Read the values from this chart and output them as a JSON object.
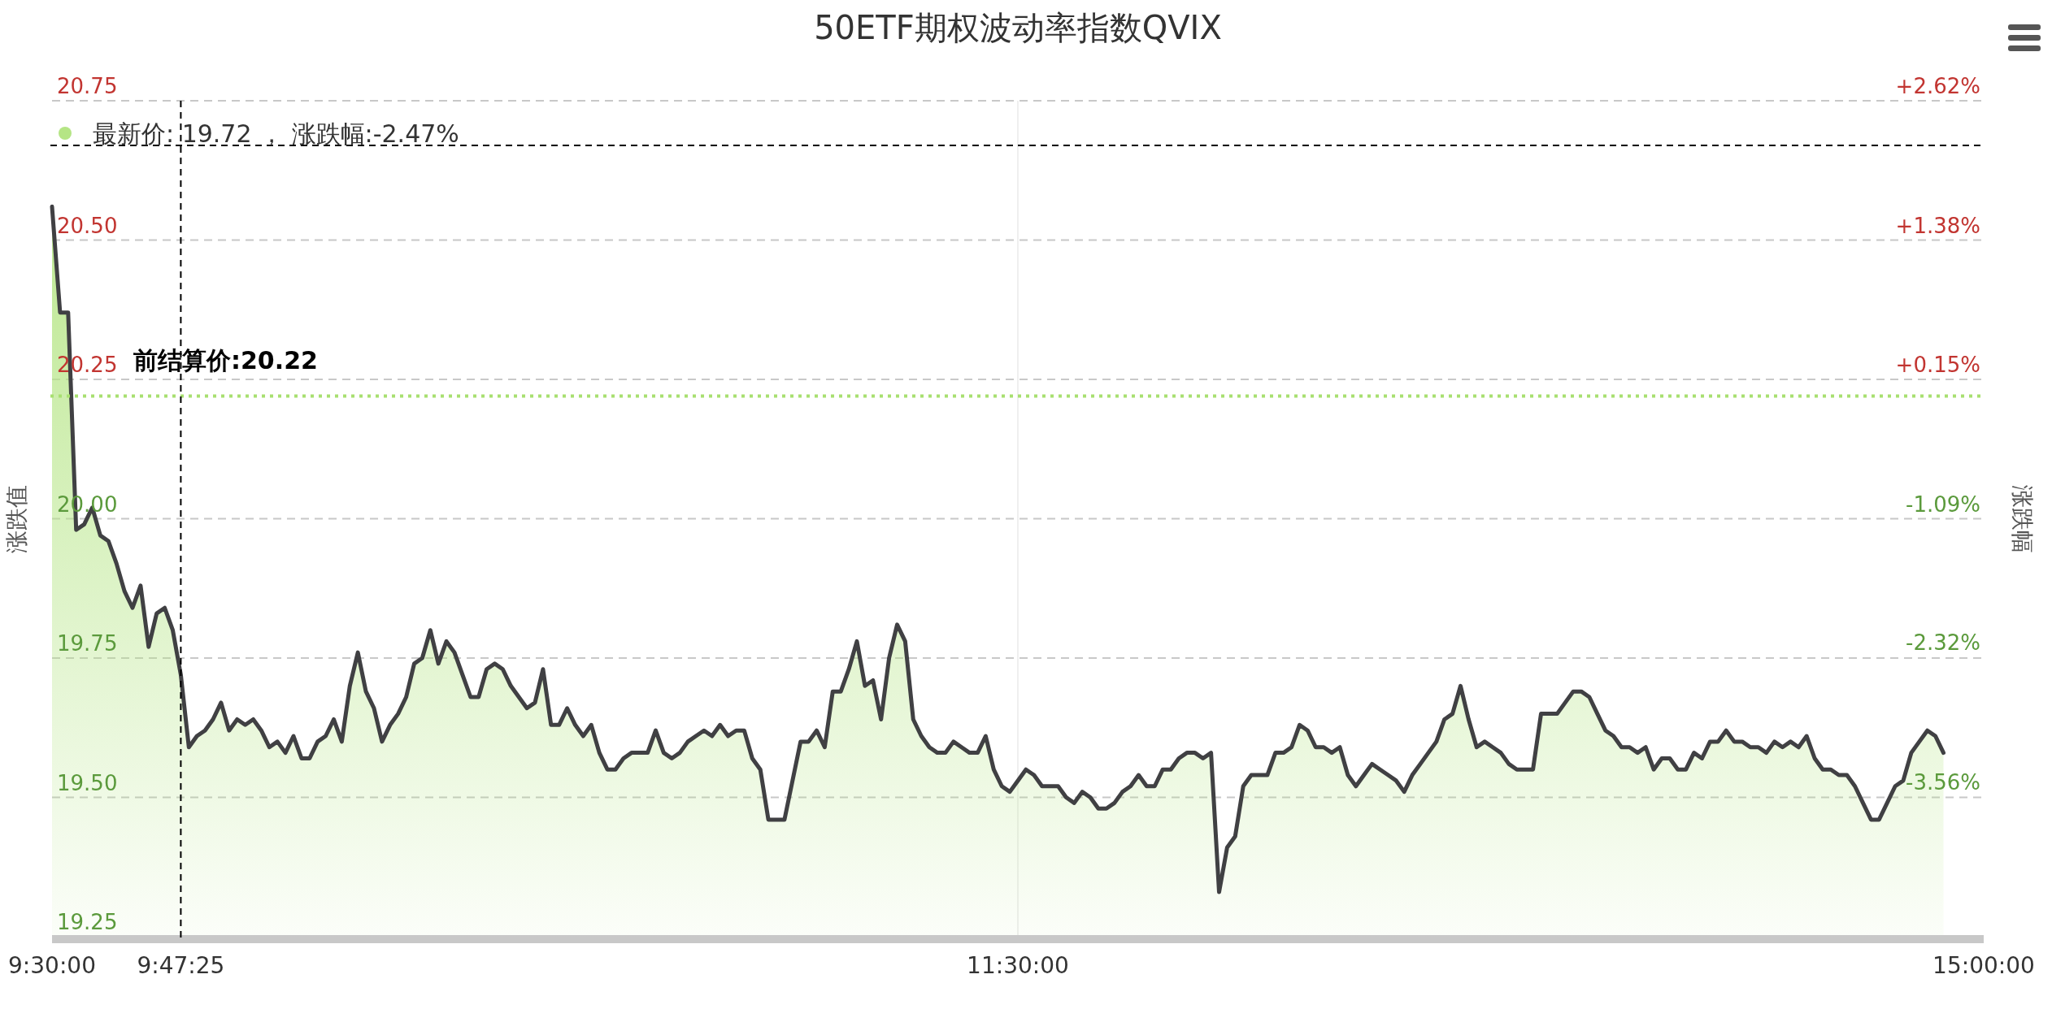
{
  "chart_data": {
    "type": "area",
    "title": "50ETF期权波动率指数QVIX",
    "ylabel": "涨跌值",
    "y2label": "涨跌幅",
    "categories": [
      "9:30:00",
      null,
      null,
      null,
      null,
      null,
      null,
      null,
      null,
      null,
      null,
      null,
      null,
      null,
      null,
      null,
      "9:47:25",
      null,
      null,
      null,
      null,
      null,
      null,
      null,
      null,
      null,
      null,
      null,
      null,
      null,
      null,
      null,
      null,
      null,
      null,
      null,
      null,
      null,
      null,
      null,
      null,
      null,
      null,
      null,
      null,
      null,
      null,
      null,
      null,
      null,
      null,
      null,
      null,
      null,
      null,
      null,
      null,
      null,
      null,
      null,
      null,
      null,
      null,
      null,
      null,
      null,
      null,
      null,
      null,
      null,
      null,
      null,
      null,
      null,
      null,
      null,
      null,
      null,
      null,
      null,
      null,
      null,
      null,
      null,
      null,
      null,
      null,
      null,
      null,
      null,
      null,
      null,
      null,
      null,
      null,
      null,
      null,
      null,
      null,
      null,
      null,
      null,
      null,
      null,
      null,
      null,
      null,
      null,
      null,
      null,
      null,
      null,
      null,
      null,
      null,
      null,
      null,
      null,
      null,
      null,
      "11:30:00",
      null,
      null,
      null,
      null,
      null,
      null,
      null,
      null,
      null,
      null,
      null,
      null,
      null,
      null,
      null,
      null,
      null,
      null,
      null,
      null,
      null,
      null,
      null,
      null,
      null,
      null,
      null,
      null,
      null,
      null,
      null,
      null,
      null,
      null,
      null,
      null,
      null,
      null,
      null,
      null,
      null,
      null,
      null,
      null,
      null,
      null,
      null,
      null,
      null,
      null,
      null,
      null,
      null,
      null,
      null,
      null,
      null,
      null,
      null,
      null,
      null,
      null,
      null,
      null,
      null,
      null,
      null,
      null,
      null,
      null,
      null,
      null,
      null,
      null,
      null,
      null,
      null,
      null,
      null,
      null,
      null,
      null,
      null,
      null,
      null,
      null,
      null,
      null,
      null,
      null,
      null,
      null,
      null,
      null,
      null,
      null,
      null,
      null,
      null,
      null,
      null,
      null,
      null,
      null,
      null,
      null,
      null,
      null,
      null,
      null,
      null,
      null,
      null,
      null,
      null,
      null,
      null,
      null,
      null,
      "15:00:00"
    ],
    "series": [
      {
        "color": "#404043",
        "values": [
          20.56,
          20.37,
          20.37,
          19.98,
          19.99,
          20.02,
          19.97,
          19.96,
          19.92,
          19.87,
          19.84,
          19.88,
          19.77,
          19.83,
          19.84,
          19.8,
          19.72,
          19.59,
          19.61,
          19.62,
          19.64,
          19.67,
          19.62,
          19.64,
          19.63,
          19.64,
          19.62,
          19.59,
          19.6,
          19.58,
          19.61,
          19.57,
          19.57,
          19.6,
          19.61,
          19.64,
          19.6,
          19.7,
          19.76,
          19.69,
          19.66,
          19.6,
          19.63,
          19.65,
          19.68,
          19.74,
          19.75,
          19.8,
          19.74,
          19.78,
          19.76,
          19.72,
          19.68,
          19.68,
          19.73,
          19.74,
          19.73,
          19.7,
          19.68,
          19.66,
          19.67,
          19.73,
          19.63,
          19.63,
          19.66,
          19.63,
          19.61,
          19.63,
          19.58,
          19.55,
          19.55,
          19.57,
          19.58,
          19.58,
          19.58,
          19.62,
          19.58,
          19.57,
          19.58,
          19.6,
          19.61,
          19.62,
          19.61,
          19.63,
          19.61,
          19.62,
          19.62,
          19.57,
          19.55,
          19.46,
          19.46,
          19.46,
          19.53,
          19.6,
          19.6,
          19.62,
          19.59,
          19.69,
          19.69,
          19.73,
          19.78,
          19.7,
          19.71,
          19.64,
          19.75,
          19.81,
          19.78,
          19.64,
          19.61,
          19.59,
          19.58,
          19.58,
          19.6,
          19.59,
          19.58,
          19.58,
          19.61,
          19.55,
          19.52,
          19.51,
          19.53,
          19.55,
          19.54,
          19.52,
          19.52,
          19.52,
          19.5,
          19.49,
          19.51,
          19.5,
          19.48,
          19.48,
          19.49,
          19.51,
          19.52,
          19.54,
          19.52,
          19.52,
          19.55,
          19.55,
          19.57,
          19.58,
          19.58,
          19.57,
          19.58,
          19.33,
          19.41,
          19.43,
          19.52,
          19.54,
          19.54,
          19.54,
          19.58,
          19.58,
          19.59,
          19.63,
          19.62,
          19.59,
          19.59,
          19.58,
          19.59,
          19.54,
          19.52,
          19.54,
          19.56,
          19.55,
          19.54,
          19.53,
          19.51,
          19.54,
          19.56,
          19.58,
          19.6,
          19.64,
          19.65,
          19.7,
          19.64,
          19.59,
          19.6,
          19.59,
          19.58,
          19.56,
          19.55,
          19.55,
          19.55,
          19.65,
          19.65,
          19.65,
          19.67,
          19.69,
          19.69,
          19.68,
          19.65,
          19.62,
          19.61,
          19.59,
          19.59,
          19.58,
          19.59,
          19.55,
          19.57,
          19.57,
          19.55,
          19.55,
          19.58,
          19.57,
          19.6,
          19.6,
          19.62,
          19.6,
          19.6,
          19.59,
          19.59,
          19.58,
          19.6,
          19.59,
          19.6,
          19.59,
          19.61,
          19.57,
          19.55,
          19.55,
          19.54,
          19.54,
          19.52,
          19.49,
          19.46,
          19.46,
          19.49,
          19.52,
          19.53,
          19.58,
          19.6,
          19.62,
          19.61,
          19.58,
          null,
          null,
          null,
          null,
          null
        ]
      }
    ],
    "ylim": [
      19.25,
      20.75
    ],
    "yticks": [
      {
        "value": 19.25,
        "label": "19.25"
      },
      {
        "value": 19.5,
        "label": "19.50"
      },
      {
        "value": 19.75,
        "label": "19.75"
      },
      {
        "value": 20,
        "label": "20.00"
      },
      {
        "value": 20.25,
        "label": "20.25"
      },
      {
        "value": 20.5,
        "label": "20.50"
      },
      {
        "value": 20.75,
        "label": "20.75"
      }
    ],
    "y2lim": [
      -4.8,
      2.62
    ],
    "y2ticks": [
      {
        "value": -3.56,
        "label": "-3.56%"
      },
      {
        "value": -2.32,
        "label": "-2.32%"
      },
      {
        "value": -1.09,
        "label": "-1.09%"
      },
      {
        "value": 0.15,
        "label": "+0.15%"
      },
      {
        "value": 1.38,
        "label": "+1.38%"
      },
      {
        "value": 2.62,
        "label": "+2.62%"
      }
    ],
    "grid": true,
    "ref_lines": [
      {
        "axis": "y",
        "value": 20.22,
        "label": "前结算价:20.22",
        "color": "#a8e070",
        "line_style": "dotted"
      },
      {
        "axis": "x",
        "value": "9:47:25",
        "label": null,
        "color": "#000000",
        "line_style": "dashed"
      },
      {
        "axis": "y",
        "value": 20.67,
        "label": null,
        "color": "#000000",
        "line_style": "dashed"
      }
    ],
    "annotations": [
      "最新价: 19.72 ， 涨跌幅:-2.47%"
    ]
  }
}
